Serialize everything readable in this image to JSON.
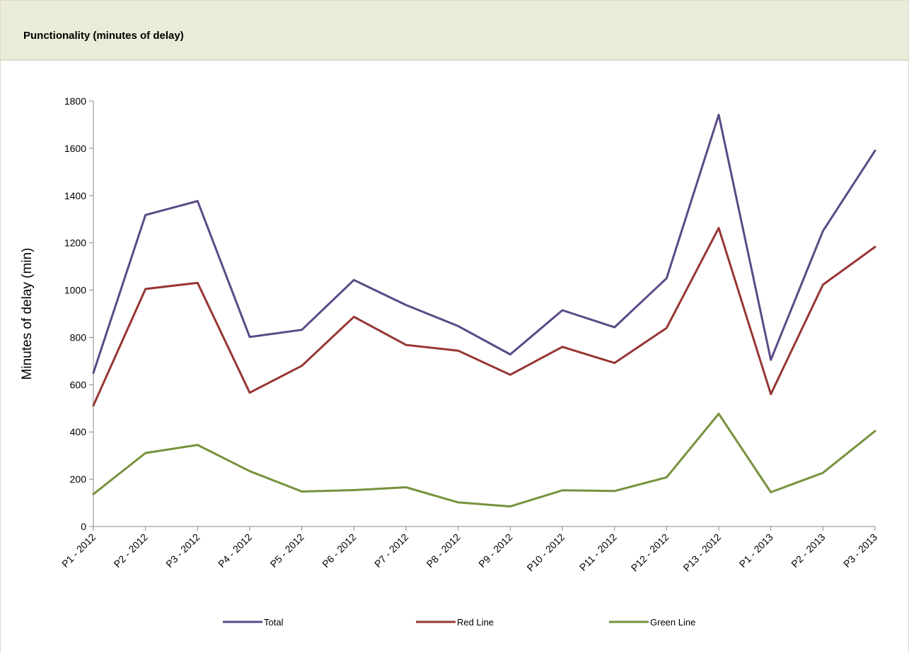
{
  "header": {
    "title": "Punctionality (minutes of delay)"
  },
  "chart_data": {
    "type": "line",
    "title": "Punctionality (minutes of delay)",
    "xlabel": "",
    "ylabel": "Minutes of delay (min)",
    "ylim": [
      0,
      1800
    ],
    "yticks": [
      0,
      200,
      400,
      600,
      800,
      1000,
      1200,
      1400,
      1600,
      1800
    ],
    "categories": [
      "P1 - 2012",
      "P2 - 2012",
      "P3 - 2012",
      "P4 - 2012",
      "P5 - 2012",
      "P6 - 2012",
      "P7 - 2012",
      "P8 - 2012",
      "P9 - 2012",
      "P10 - 2012",
      "P11 - 2012",
      "P12 - 2012",
      "P13 - 2012",
      "P1 - 2013",
      "P2 - 2013",
      "P3 - 2013"
    ],
    "grid": false,
    "legend_position": "bottom",
    "series": [
      {
        "name": "Total",
        "color": "#5b4a87",
        "values": [
          650,
          1318,
          1377,
          802,
          832,
          1043,
          937,
          848,
          728,
          915,
          843,
          1050,
          1742,
          705,
          1250,
          1590
        ]
      },
      {
        "name": "Red Line",
        "color": "#963634",
        "values": [
          512,
          1005,
          1031,
          566,
          680,
          887,
          768,
          744,
          642,
          760,
          692,
          840,
          1263,
          560,
          1023,
          1183
        ]
      },
      {
        "name": "Green Line",
        "color": "#76923c",
        "values": [
          137,
          311,
          345,
          234,
          148,
          154,
          166,
          102,
          85,
          153,
          150,
          208,
          477,
          145,
          227,
          404
        ]
      }
    ]
  }
}
